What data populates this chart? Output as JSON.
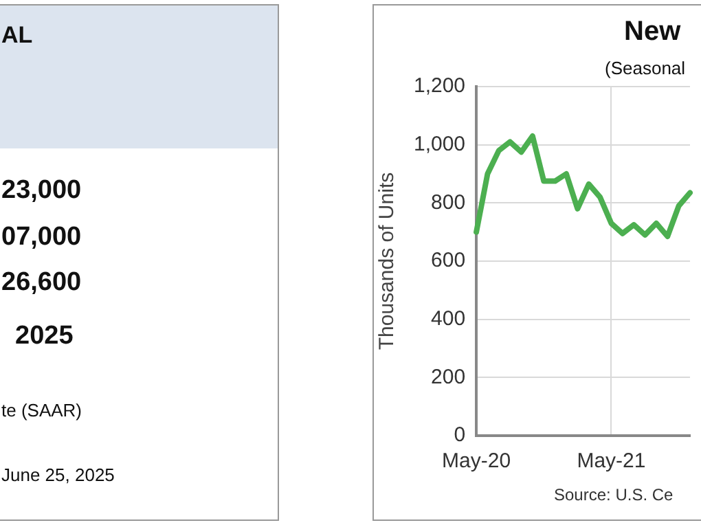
{
  "chart_data": [
    {
      "type": "other",
      "title": "AL",
      "annotations": [
        "23,000",
        "07,000",
        "26,600",
        "2025",
        "te (SAAR)",
        "June 25, 2025"
      ]
    },
    {
      "type": "line",
      "title": "New",
      "subtitle": "(Seasonal",
      "ylabel": "Thousands of Units",
      "annotations": [
        "Source:  U.S. Ce"
      ],
      "categories": [
        "May-20",
        null,
        null,
        null,
        null,
        null,
        null,
        null,
        null,
        null,
        null,
        null,
        "May-21",
        null,
        null,
        null,
        null,
        null,
        null,
        null
      ],
      "series": [
        {
          "color": "#4caf50",
          "values": [
            700,
            900,
            980,
            1010,
            975,
            1030,
            875,
            875,
            900,
            780,
            865,
            820,
            730,
            695,
            725,
            690,
            730,
            685,
            790,
            835
          ]
        }
      ],
      "ylim": [
        0,
        1200
      ],
      "yticks": [
        0,
        200,
        400,
        600,
        800,
        {
          "value": 1000,
          "label": "1,000"
        },
        {
          "value": 1200,
          "label": "1,200"
        }
      ],
      "grid": true,
      "legend": false,
      "marker": "none",
      "line_style": "solid"
    }
  ]
}
